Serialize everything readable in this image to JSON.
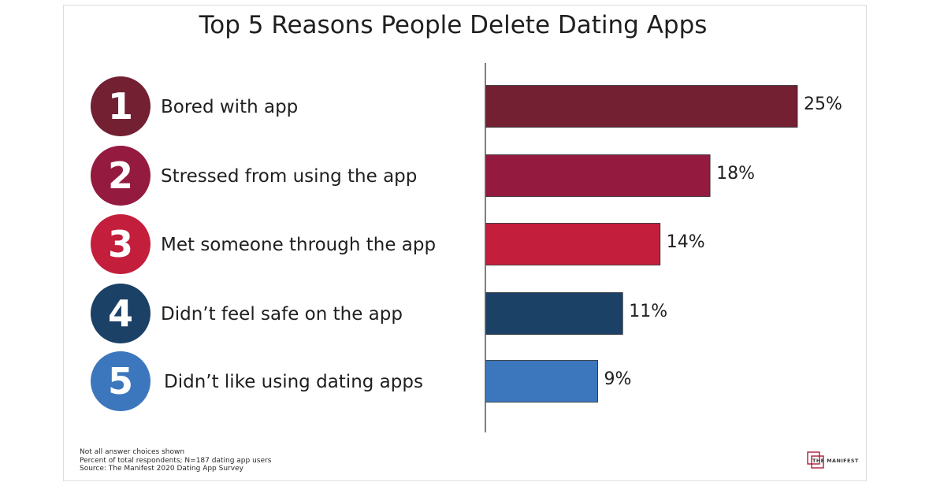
{
  "chart_data": {
    "type": "bar",
    "orientation": "horizontal",
    "title": "Top 5 Reasons People Delete Dating Apps",
    "categories": [
      "Bored with app",
      "Stressed from using the app",
      "Met someone through the app",
      "Didn’t feel safe on the app",
      "Didn’t like using dating apps"
    ],
    "ranks": [
      "1",
      "2",
      "3",
      "4",
      "5"
    ],
    "values": [
      25,
      18,
      14,
      11,
      9
    ],
    "value_labels": [
      "25%",
      "18%",
      "14%",
      "11%",
      "9%"
    ],
    "colors": [
      "#722032",
      "#951a3f",
      "#c41e3d",
      "#1c4167",
      "#3c77bd"
    ],
    "circle_colors": [
      "#722032",
      "#951a3f",
      "#c41e3d",
      "#1c4167",
      "#3c77bd"
    ],
    "xlim": [
      0,
      25
    ],
    "grid": false
  },
  "footnotes": [
    "Not all answer choices shown",
    "Percent of total respondents; N=187 dating app users",
    "Source: The Manifest 2020 Dating App Survey"
  ],
  "logo": {
    "text": "THE MANIFEST",
    "color": "#b01c3d"
  }
}
